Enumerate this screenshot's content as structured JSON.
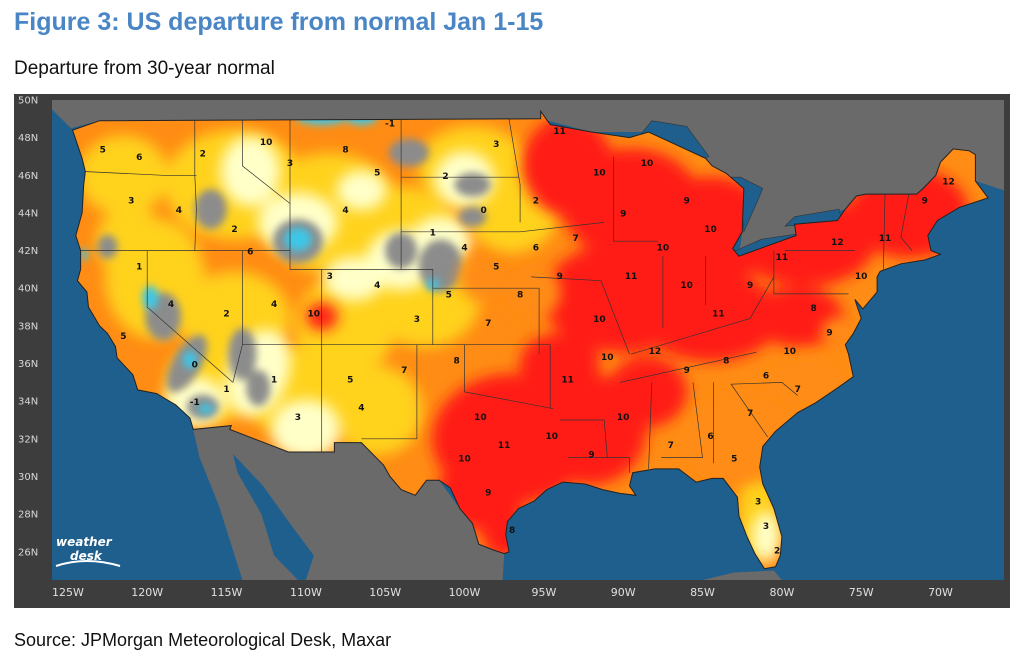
{
  "figure": {
    "title": "Figure 3: US departure from normal Jan 1-15",
    "subtitle": "Departure from 30-year normal",
    "source": "Source: JPMorgan Meteorological Desk, Maxar"
  },
  "map": {
    "lat_labels": [
      "50N",
      "48N",
      "46N",
      "44N",
      "42N",
      "40N",
      "38N",
      "36N",
      "34N",
      "32N",
      "30N",
      "28N",
      "26N"
    ],
    "lon_labels": [
      "125W",
      "120W",
      "115W",
      "110W",
      "105W",
      "100W",
      "95W",
      "90W",
      "85W",
      "80W",
      "75W",
      "70W"
    ],
    "logo": "weather desk",
    "colors": {
      "ocean": "#1f5f8e",
      "land_outside": "#6a6a6a",
      "frame": "#3d3d3d",
      "band_0_1": "#8c8c8c",
      "band_minus": "#3ec6e6",
      "band_2_3": "#ffffc8",
      "band_3_5": "#ffd21e",
      "band_5_7": "#ff8c14",
      "band_8_plus": "#ff1e14"
    },
    "value_labels": [
      {
        "text": "5",
        "lon": -122.8,
        "lat": 47.2
      },
      {
        "text": "6",
        "lon": -120.5,
        "lat": 46.8
      },
      {
        "text": "2",
        "lon": -116.5,
        "lat": 47.0
      },
      {
        "text": "10",
        "lon": -112.5,
        "lat": 47.6
      },
      {
        "text": "3",
        "lon": -121.0,
        "lat": 44.5
      },
      {
        "text": "4",
        "lon": -118.0,
        "lat": 44.0
      },
      {
        "text": "2",
        "lon": -114.5,
        "lat": 43.0
      },
      {
        "text": "6",
        "lon": -113.5,
        "lat": 41.8
      },
      {
        "text": "3",
        "lon": -111.0,
        "lat": 46.5
      },
      {
        "text": "8",
        "lon": -107.5,
        "lat": 47.2
      },
      {
        "text": "5",
        "lon": -105.5,
        "lat": 46.0
      },
      {
        "text": "4",
        "lon": -107.5,
        "lat": 44.0
      },
      {
        "text": "-1",
        "lon": -104.7,
        "lat": 48.6
      },
      {
        "text": "2",
        "lon": -101.2,
        "lat": 45.8
      },
      {
        "text": "0",
        "lon": -98.8,
        "lat": 44.0
      },
      {
        "text": "3",
        "lon": -98.0,
        "lat": 47.5
      },
      {
        "text": "1",
        "lon": -102.0,
        "lat": 42.8
      },
      {
        "text": "2",
        "lon": -95.5,
        "lat": 44.5
      },
      {
        "text": "11",
        "lon": -94.0,
        "lat": 48.2
      },
      {
        "text": "10",
        "lon": -91.5,
        "lat": 46.0
      },
      {
        "text": "10",
        "lon": -88.5,
        "lat": 46.5
      },
      {
        "text": "9",
        "lon": -86.0,
        "lat": 44.5
      },
      {
        "text": "10",
        "lon": -84.5,
        "lat": 43.0
      },
      {
        "text": "11",
        "lon": -80.0,
        "lat": 41.5
      },
      {
        "text": "12",
        "lon": -76.5,
        "lat": 42.3
      },
      {
        "text": "11",
        "lon": -73.5,
        "lat": 42.5
      },
      {
        "text": "9",
        "lon": -71.0,
        "lat": 44.5
      },
      {
        "text": "12",
        "lon": -69.5,
        "lat": 45.5
      },
      {
        "text": "10",
        "lon": -75.0,
        "lat": 40.5
      },
      {
        "text": "8",
        "lon": -78.0,
        "lat": 38.8
      },
      {
        "text": "9",
        "lon": -82.0,
        "lat": 40.0
      },
      {
        "text": "10",
        "lon": -86.0,
        "lat": 40.0
      },
      {
        "text": "11",
        "lon": -89.5,
        "lat": 40.5
      },
      {
        "text": "10",
        "lon": -91.5,
        "lat": 38.2
      },
      {
        "text": "9",
        "lon": -94.0,
        "lat": 40.5
      },
      {
        "text": "8",
        "lon": -96.5,
        "lat": 39.5
      },
      {
        "text": "7",
        "lon": -98.5,
        "lat": 38.0
      },
      {
        "text": "5",
        "lon": -101.0,
        "lat": 39.5
      },
      {
        "text": "3",
        "lon": -103.0,
        "lat": 38.2
      },
      {
        "text": "4",
        "lon": -105.5,
        "lat": 40.0
      },
      {
        "text": "3",
        "lon": -108.5,
        "lat": 40.5
      },
      {
        "text": "10",
        "lon": -109.5,
        "lat": 38.5
      },
      {
        "text": "4",
        "lon": -112.0,
        "lat": 39.0
      },
      {
        "text": "2",
        "lon": -115.0,
        "lat": 38.5
      },
      {
        "text": "4",
        "lon": -118.5,
        "lat": 39.0
      },
      {
        "text": "1",
        "lon": -120.5,
        "lat": 41.0
      },
      {
        "text": "5",
        "lon": -121.5,
        "lat": 37.3
      },
      {
        "text": "0",
        "lon": -117.0,
        "lat": 35.8
      },
      {
        "text": "1",
        "lon": -115.0,
        "lat": 34.5
      },
      {
        "text": "-1",
        "lon": -117.0,
        "lat": 33.8
      },
      {
        "text": "1",
        "lon": -112.0,
        "lat": 35.0
      },
      {
        "text": "3",
        "lon": -110.5,
        "lat": 33.0
      },
      {
        "text": "5",
        "lon": -107.2,
        "lat": 35.0
      },
      {
        "text": "4",
        "lon": -106.5,
        "lat": 33.5
      },
      {
        "text": "7",
        "lon": -103.8,
        "lat": 35.5
      },
      {
        "text": "8",
        "lon": -100.5,
        "lat": 36.0
      },
      {
        "text": "10",
        "lon": -99.0,
        "lat": 33.0
      },
      {
        "text": "11",
        "lon": -97.5,
        "lat": 31.5
      },
      {
        "text": "10",
        "lon": -100.0,
        "lat": 30.8
      },
      {
        "text": "9",
        "lon": -98.5,
        "lat": 29.0
      },
      {
        "text": "8",
        "lon": -97.0,
        "lat": 27.0
      },
      {
        "text": "10",
        "lon": -94.5,
        "lat": 32.0
      },
      {
        "text": "9",
        "lon": -92.0,
        "lat": 31.0
      },
      {
        "text": "10",
        "lon": -90.0,
        "lat": 33.0
      },
      {
        "text": "11",
        "lon": -93.5,
        "lat": 35.0
      },
      {
        "text": "10",
        "lon": -91.0,
        "lat": 36.2
      },
      {
        "text": "12",
        "lon": -88.0,
        "lat": 36.5
      },
      {
        "text": "9",
        "lon": -86.0,
        "lat": 35.5
      },
      {
        "text": "8",
        "lon": -83.5,
        "lat": 36.0
      },
      {
        "text": "6",
        "lon": -81.0,
        "lat": 35.2
      },
      {
        "text": "7",
        "lon": -79.0,
        "lat": 34.5
      },
      {
        "text": "7",
        "lon": -82.0,
        "lat": 33.2
      },
      {
        "text": "6",
        "lon": -84.5,
        "lat": 32.0
      },
      {
        "text": "7",
        "lon": -87.0,
        "lat": 31.5
      },
      {
        "text": "5",
        "lon": -83.0,
        "lat": 30.8
      },
      {
        "text": "3",
        "lon": -81.5,
        "lat": 28.5
      },
      {
        "text": "3",
        "lon": -81.0,
        "lat": 27.2
      },
      {
        "text": "2",
        "lon": -80.3,
        "lat": 25.9
      },
      {
        "text": "9",
        "lon": -77.0,
        "lat": 37.5
      },
      {
        "text": "10",
        "lon": -87.5,
        "lat": 42.0
      },
      {
        "text": "7",
        "lon": -93.0,
        "lat": 42.5
      },
      {
        "text": "6",
        "lon": -95.5,
        "lat": 42.0
      },
      {
        "text": "5",
        "lon": -98.0,
        "lat": 41.0
      },
      {
        "text": "4",
        "lon": -100.0,
        "lat": 42.0
      },
      {
        "text": "9",
        "lon": -90.0,
        "lat": 43.8
      },
      {
        "text": "11",
        "lon": -84.0,
        "lat": 38.5
      },
      {
        "text": "10",
        "lon": -79.5,
        "lat": 36.5
      }
    ]
  }
}
